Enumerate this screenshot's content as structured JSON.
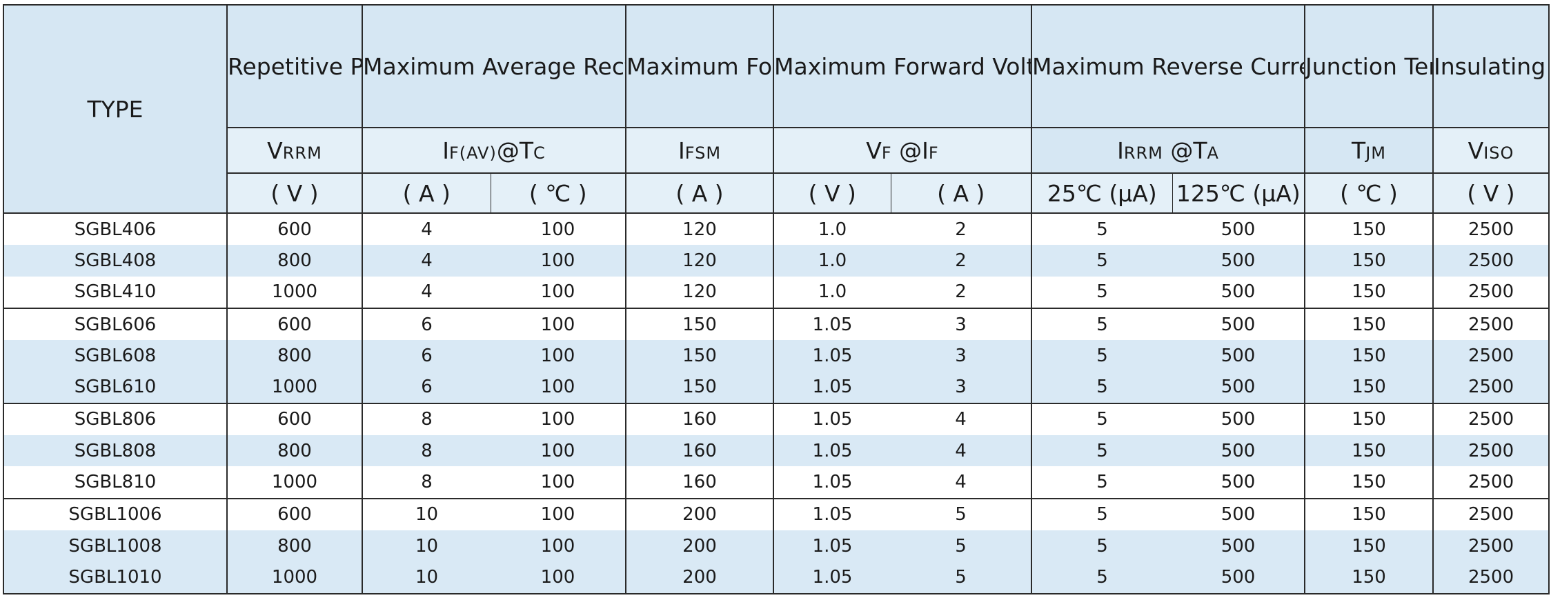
{
  "headers": {
    "type": "TYPE",
    "vrrm_title": "Repetitive Peak Reverse Voltage",
    "ifav_title": "Maximum Average Rectified Current",
    "ifsm_title": "Maximum Forward Peak Surge Current",
    "vf_title": "Maximum Forward Voltage",
    "irrm_title": "Maximum Reverse Current",
    "tjm_title": "Junction Tempera ture",
    "viso_title": "Insulating Voltage"
  },
  "symbols": {
    "vrrm_main": "V",
    "vrrm_sub": "RRM",
    "ifav_main": "I",
    "ifav_sub": "F(AV)",
    "ifav_tail": "@T",
    "ifav_tail_sub": "C",
    "ifsm_main": "I",
    "ifsm_sub": "FSM",
    "vf_main": "V",
    "vf_sub": "F",
    "vf_tail": " @I",
    "vf_tail_sub": "F",
    "irrm_main": "I",
    "irrm_sub": "RRM",
    "irrm_tail": " @T",
    "irrm_tail_sub": "A",
    "tjm_main": "T",
    "tjm_sub": "JM",
    "viso_main": "V",
    "viso_sub": "ISO"
  },
  "units": {
    "vrrm": "( V )",
    "ifav_a": "( A )",
    "ifav_c": "( ℃ )",
    "ifsm": "( A )",
    "vf_v": "( V )",
    "vf_a": "( A )",
    "irrm_25": "25℃ (μA)",
    "irrm_125": "125℃ (μA)",
    "tjm": "( ℃ )",
    "viso": "( V )"
  },
  "rows": [
    {
      "type": "SGBL406",
      "vrrm": "600",
      "ifav": "4",
      "tc": "100",
      "ifsm": "120",
      "vf": "1.0",
      "if": "2",
      "ir25": "5",
      "ir125": "500",
      "tjm": "150",
      "viso": "2500"
    },
    {
      "type": "SGBL408",
      "vrrm": "800",
      "ifav": "4",
      "tc": "100",
      "ifsm": "120",
      "vf": "1.0",
      "if": "2",
      "ir25": "5",
      "ir125": "500",
      "tjm": "150",
      "viso": "2500"
    },
    {
      "type": "SGBL410",
      "vrrm": "1000",
      "ifav": "4",
      "tc": "100",
      "ifsm": "120",
      "vf": "1.0",
      "if": "2",
      "ir25": "5",
      "ir125": "500",
      "tjm": "150",
      "viso": "2500"
    },
    {
      "type": "SGBL606",
      "vrrm": "600",
      "ifav": "6",
      "tc": "100",
      "ifsm": "150",
      "vf": "1.05",
      "if": "3",
      "ir25": "5",
      "ir125": "500",
      "tjm": "150",
      "viso": "2500"
    },
    {
      "type": "SGBL608",
      "vrrm": "800",
      "ifav": "6",
      "tc": "100",
      "ifsm": "150",
      "vf": "1.05",
      "if": "3",
      "ir25": "5",
      "ir125": "500",
      "tjm": "150",
      "viso": "2500"
    },
    {
      "type": "SGBL610",
      "vrrm": "1000",
      "ifav": "6",
      "tc": "100",
      "ifsm": "150",
      "vf": "1.05",
      "if": "3",
      "ir25": "5",
      "ir125": "500",
      "tjm": "150",
      "viso": "2500"
    },
    {
      "type": "SGBL806",
      "vrrm": "600",
      "ifav": "8",
      "tc": "100",
      "ifsm": "160",
      "vf": "1.05",
      "if": "4",
      "ir25": "5",
      "ir125": "500",
      "tjm": "150",
      "viso": "2500"
    },
    {
      "type": "SGBL808",
      "vrrm": "800",
      "ifav": "8",
      "tc": "100",
      "ifsm": "160",
      "vf": "1.05",
      "if": "4",
      "ir25": "5",
      "ir125": "500",
      "tjm": "150",
      "viso": "2500"
    },
    {
      "type": "SGBL810",
      "vrrm": "1000",
      "ifav": "8",
      "tc": "100",
      "ifsm": "160",
      "vf": "1.05",
      "if": "4",
      "ir25": "5",
      "ir125": "500",
      "tjm": "150",
      "viso": "2500"
    },
    {
      "type": "SGBL1006",
      "vrrm": "600",
      "ifav": "10",
      "tc": "100",
      "ifsm": "200",
      "vf": "1.05",
      "if": "5",
      "ir25": "5",
      "ir125": "500",
      "tjm": "150",
      "viso": "2500"
    },
    {
      "type": "SGBL1008",
      "vrrm": "800",
      "ifav": "10",
      "tc": "100",
      "ifsm": "200",
      "vf": "1.05",
      "if": "5",
      "ir25": "5",
      "ir125": "500",
      "tjm": "150",
      "viso": "2500"
    },
    {
      "type": "SGBL1010",
      "vrrm": "1000",
      "ifav": "10",
      "tc": "100",
      "ifsm": "200",
      "vf": "1.05",
      "if": "5",
      "ir25": "5",
      "ir125": "500",
      "tjm": "150",
      "viso": "2500"
    }
  ]
}
